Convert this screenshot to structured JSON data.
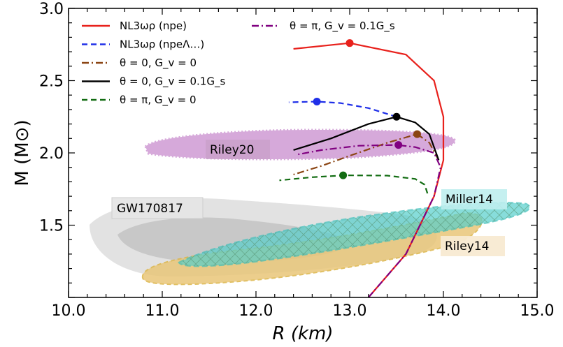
{
  "chart_data": {
    "type": "line",
    "xlabel": "R (km)",
    "ylabel": "M (M⊙)",
    "xlim": [
      10.0,
      15.0
    ],
    "ylim": [
      1.0,
      3.0
    ],
    "x_ticks": [
      "10.0",
      "11.0",
      "12.0",
      "13.0",
      "14.0",
      "15.0"
    ],
    "y_ticks": [
      "1.5",
      "2.0",
      "2.5",
      "3.0"
    ],
    "grid": false,
    "legend_position": "top-left",
    "series": [
      {
        "name": "NL3ωρ (npe)",
        "color": "#e8211c",
        "style": "solid",
        "points": [
          [
            13.2,
            1.0
          ],
          [
            13.6,
            1.3
          ],
          [
            13.9,
            1.7
          ],
          [
            14.0,
            1.95
          ],
          [
            14.0,
            2.25
          ],
          [
            13.9,
            2.5
          ],
          [
            13.6,
            2.68
          ],
          [
            13.0,
            2.76
          ],
          [
            12.4,
            2.72
          ]
        ],
        "max_mass_marker": [
          13.0,
          2.76
        ]
      },
      {
        "name": "NL3ωρ (npeΛ…)",
        "color": "#1f2fe8",
        "style": "dashed",
        "points": [
          [
            13.5,
            2.25
          ],
          [
            13.2,
            2.31
          ],
          [
            12.9,
            2.345
          ],
          [
            12.65,
            2.355
          ],
          [
            12.35,
            2.35
          ]
        ],
        "max_mass_marker": [
          12.65,
          2.355
        ]
      },
      {
        "name": "θ = 0, G_v = 0",
        "color": "#8b4513",
        "style": "dashdot",
        "points": [
          [
            13.95,
            1.95
          ],
          [
            13.85,
            2.07
          ],
          [
            13.72,
            2.13
          ],
          [
            13.4,
            2.07
          ],
          [
            13.0,
            1.98
          ],
          [
            12.7,
            1.91
          ],
          [
            12.4,
            1.85
          ]
        ],
        "max_mass_marker": [
          13.72,
          2.13
        ]
      },
      {
        "name": "θ = 0, G_v = 0.1G_s",
        "color": "#000000",
        "style": "solid",
        "points": [
          [
            13.95,
            1.95
          ],
          [
            13.85,
            2.13
          ],
          [
            13.7,
            2.21
          ],
          [
            13.5,
            2.25
          ],
          [
            13.2,
            2.2
          ],
          [
            12.8,
            2.1
          ],
          [
            12.4,
            2.02
          ]
        ],
        "max_mass_marker": [
          13.5,
          2.25
        ]
      },
      {
        "name": "θ = π, G_v = 0",
        "color": "#126c12",
        "style": "dashed",
        "points": [
          [
            13.83,
            1.72
          ],
          [
            13.8,
            1.78
          ],
          [
            13.7,
            1.82
          ],
          [
            13.4,
            1.843
          ],
          [
            12.95,
            1.845
          ],
          [
            12.6,
            1.832
          ],
          [
            12.25,
            1.81
          ]
        ],
        "max_mass_marker": [
          12.93,
          1.845
        ]
      },
      {
        "name": "θ = π, G_v = 0.1G_s",
        "color": "#800080",
        "style": "dashdot",
        "points": [
          [
            13.2,
            1.0
          ],
          [
            13.6,
            1.3
          ],
          [
            13.9,
            1.7
          ],
          [
            13.97,
            1.9
          ],
          [
            13.9,
            2.0
          ],
          [
            13.7,
            2.04
          ],
          [
            13.5,
            2.055
          ],
          [
            13.1,
            2.05
          ],
          [
            12.7,
            2.02
          ],
          [
            12.45,
            1.99
          ]
        ],
        "max_mass_marker": [
          13.52,
          2.055
        ]
      }
    ],
    "regions": [
      {
        "name": "GW170817",
        "color": "#b8b8b8"
      },
      {
        "name": "Riley20",
        "color": "#c48ec8"
      },
      {
        "name": "Miller14",
        "color": "#36c8c4"
      },
      {
        "name": "Riley14",
        "color": "#e6c26a"
      }
    ]
  }
}
